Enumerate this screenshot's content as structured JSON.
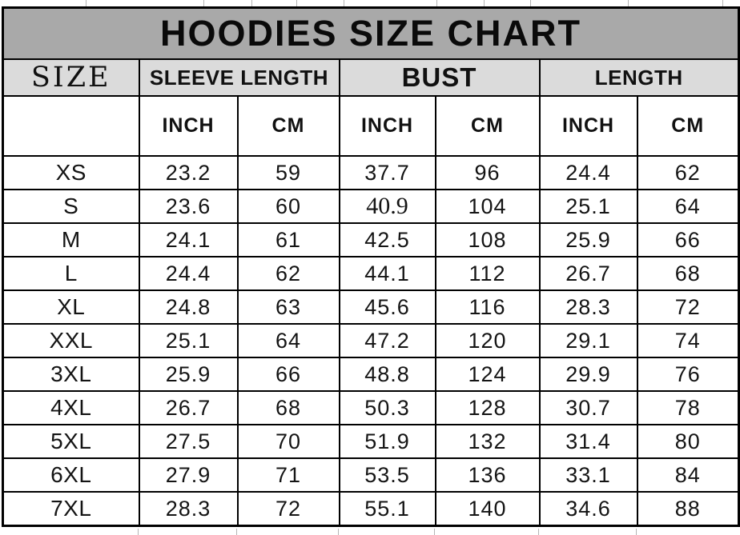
{
  "title": "HOODIES SIZE CHART",
  "headers": {
    "size": "SIZE",
    "groups": [
      "SLEEVE LENGTH",
      "BUST",
      "LENGTH"
    ]
  },
  "units_row": [
    "",
    "INCH",
    "CM",
    "INCH",
    "CM",
    "INCH",
    "CM"
  ],
  "colors": {
    "page_bg": "#ffffff",
    "title_bg": "#a9a9a9",
    "header_bg": "#dbdbdb",
    "border": "#000000",
    "text": "#111111",
    "tick": "#b5b5b5"
  },
  "style_hints": {
    "serif_cells": [
      [
        1,
        3
      ]
    ]
  },
  "chart_data": {
    "type": "table",
    "title": "HOODIES SIZE CHART",
    "column_headers": [
      "SIZE",
      "SLEEVE LENGTH (INCH)",
      "SLEEVE LENGTH (CM)",
      "BUST (INCH)",
      "BUST (CM)",
      "LENGTH (INCH)",
      "LENGTH (CM)"
    ],
    "rows": [
      [
        "XS",
        "23.2",
        "59",
        "37.7",
        "96",
        "24.4",
        "62"
      ],
      [
        "S",
        "23.6",
        "60",
        "40.9",
        "104",
        "25.1",
        "64"
      ],
      [
        "M",
        "24.1",
        "61",
        "42.5",
        "108",
        "25.9",
        "66"
      ],
      [
        "L",
        "24.4",
        "62",
        "44.1",
        "112",
        "26.7",
        "68"
      ],
      [
        "XL",
        "24.8",
        "63",
        "45.6",
        "116",
        "28.3",
        "72"
      ],
      [
        "XXL",
        "25.1",
        "64",
        "47.2",
        "120",
        "29.1",
        "74"
      ],
      [
        "3XL",
        "25.9",
        "66",
        "48.8",
        "124",
        "29.9",
        "76"
      ],
      [
        "4XL",
        "26.7",
        "68",
        "50.3",
        "128",
        "30.7",
        "78"
      ],
      [
        "5XL",
        "27.5",
        "70",
        "51.9",
        "132",
        "31.4",
        "80"
      ],
      [
        "6XL",
        "27.9",
        "71",
        "53.5",
        "136",
        "33.1",
        "84"
      ],
      [
        "7XL",
        "28.3",
        "72",
        "55.1",
        "140",
        "34.6",
        "88"
      ]
    ]
  }
}
